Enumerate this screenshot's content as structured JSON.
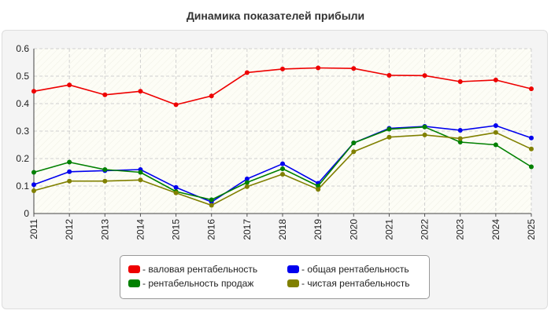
{
  "chart_data": {
    "type": "line",
    "title": "Динамика показателей прибыли",
    "xlabel": "",
    "ylabel": "",
    "x": [
      "2011",
      "2012",
      "2013",
      "2014",
      "2015",
      "2016",
      "2017",
      "2018",
      "2019",
      "2020",
      "2021",
      "2022",
      "2023",
      "2024",
      "2025"
    ],
    "ylim": [
      0,
      0.6
    ],
    "yticks": [
      0,
      0.1,
      0.2,
      0.3,
      0.4,
      0.5,
      0.6
    ],
    "ytick_labels": [
      "0",
      "0.1",
      "0.2",
      "0.3",
      "0.4",
      "0.5",
      "0.6"
    ],
    "grid": true,
    "legend_position": "bottom",
    "series": [
      {
        "name": "- валовая рентабельность",
        "color": "#ee0000",
        "values": [
          0.445,
          0.468,
          0.432,
          0.445,
          0.396,
          0.428,
          0.513,
          0.526,
          0.53,
          0.528,
          0.503,
          0.502,
          0.48,
          0.486,
          0.454
        ]
      },
      {
        "name": "- общая рентабельность",
        "color": "#0000ee",
        "values": [
          0.105,
          0.152,
          0.156,
          0.16,
          0.095,
          0.042,
          0.126,
          0.181,
          0.11,
          0.257,
          0.31,
          0.317,
          0.303,
          0.32,
          0.275
        ]
      },
      {
        "name": "- рентабельность продаж",
        "color": "#008000",
        "values": [
          0.15,
          0.187,
          0.16,
          0.15,
          0.08,
          0.05,
          0.113,
          0.163,
          0.1,
          0.257,
          0.307,
          0.315,
          0.26,
          0.25,
          0.17
        ]
      },
      {
        "name": "- чистая рентабельность",
        "color": "#808000",
        "values": [
          0.083,
          0.118,
          0.118,
          0.122,
          0.075,
          0.03,
          0.098,
          0.143,
          0.088,
          0.225,
          0.278,
          0.286,
          0.273,
          0.295,
          0.235
        ]
      }
    ]
  }
}
